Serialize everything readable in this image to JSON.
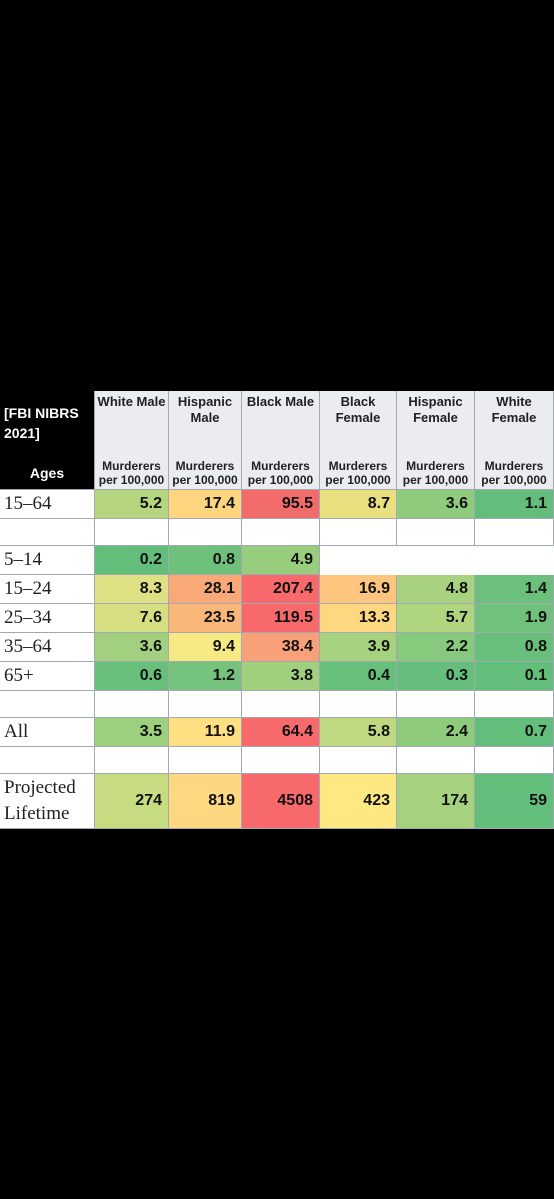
{
  "header": {
    "corner_title": "[FBI NIBRS 2021]",
    "corner_label": "Ages",
    "columns": [
      {
        "name": "White Male",
        "unit": "Murderers per 100,000"
      },
      {
        "name": "Hispanic Male",
        "unit": "Murderers per 100,000"
      },
      {
        "name": "Black Male",
        "unit": "Murderers per 100,000"
      },
      {
        "name": "Black Female",
        "unit": "Murderers per 100,000"
      },
      {
        "name": "Hispanic Female",
        "unit": "Murderers per 100,000"
      },
      {
        "name": "White Female",
        "unit": "Murderers per 100,000"
      }
    ]
  },
  "table": {
    "groups": [
      [
        {
          "label": "15–64",
          "values": [
            5.2,
            17.4,
            95.5,
            8.7,
            3.6,
            1.1
          ],
          "colors": [
            "#b5d67f",
            "#fed57f",
            "#f26b6b",
            "#e8e07f",
            "#8ecb7c",
            "#63be7b"
          ]
        }
      ],
      [
        {
          "label": "5–14",
          "values": [
            0.2,
            0.8,
            4.9
          ],
          "colors": [
            "#63be7b",
            "#6ec07b",
            "#99cd7e"
          ]
        },
        {
          "label": "15–24",
          "values": [
            8.3,
            28.1,
            207.4,
            16.9,
            4.8,
            1.4
          ],
          "colors": [
            "#dfe083",
            "#f8a977",
            "#f8696b",
            "#fdc57d",
            "#a8d27f",
            "#6bc07b"
          ]
        },
        {
          "label": "25–34",
          "values": [
            7.6,
            23.5,
            119.5,
            13.3,
            5.7,
            1.9
          ],
          "colors": [
            "#d6de81",
            "#f9b779",
            "#f8696b",
            "#fed880",
            "#b0d57f",
            "#70c17b"
          ]
        },
        {
          "label": "35–64",
          "values": [
            3.6,
            9.4,
            38.4,
            3.9,
            2.2,
            0.8
          ],
          "colors": [
            "#a2d07e",
            "#f7e983",
            "#f8a077",
            "#a6d17e",
            "#87c97d",
            "#68bf7b"
          ]
        },
        {
          "label": "65+",
          "values": [
            0.6,
            1.2,
            3.8,
            0.4,
            0.3,
            0.1
          ],
          "colors": [
            "#68bf7b",
            "#75c37c",
            "#a0d07e",
            "#66bf7b",
            "#65be7b",
            "#63be7b"
          ]
        }
      ],
      [
        {
          "label": "All",
          "values": [
            3.5,
            11.9,
            64.4,
            5.8,
            2.4,
            0.7
          ],
          "colors": [
            "#9ccf7e",
            "#fedf81",
            "#f8696b",
            "#bfd981",
            "#8ecb7c",
            "#63be7b"
          ]
        }
      ],
      [
        {
          "label": "Projected Lifetime",
          "values": [
            274,
            819,
            4508,
            423,
            174,
            59
          ],
          "colors": [
            "#c7dc81",
            "#fed880",
            "#f8696b",
            "#fee882",
            "#a6d17e",
            "#63be7b"
          ]
        }
      ]
    ]
  }
}
